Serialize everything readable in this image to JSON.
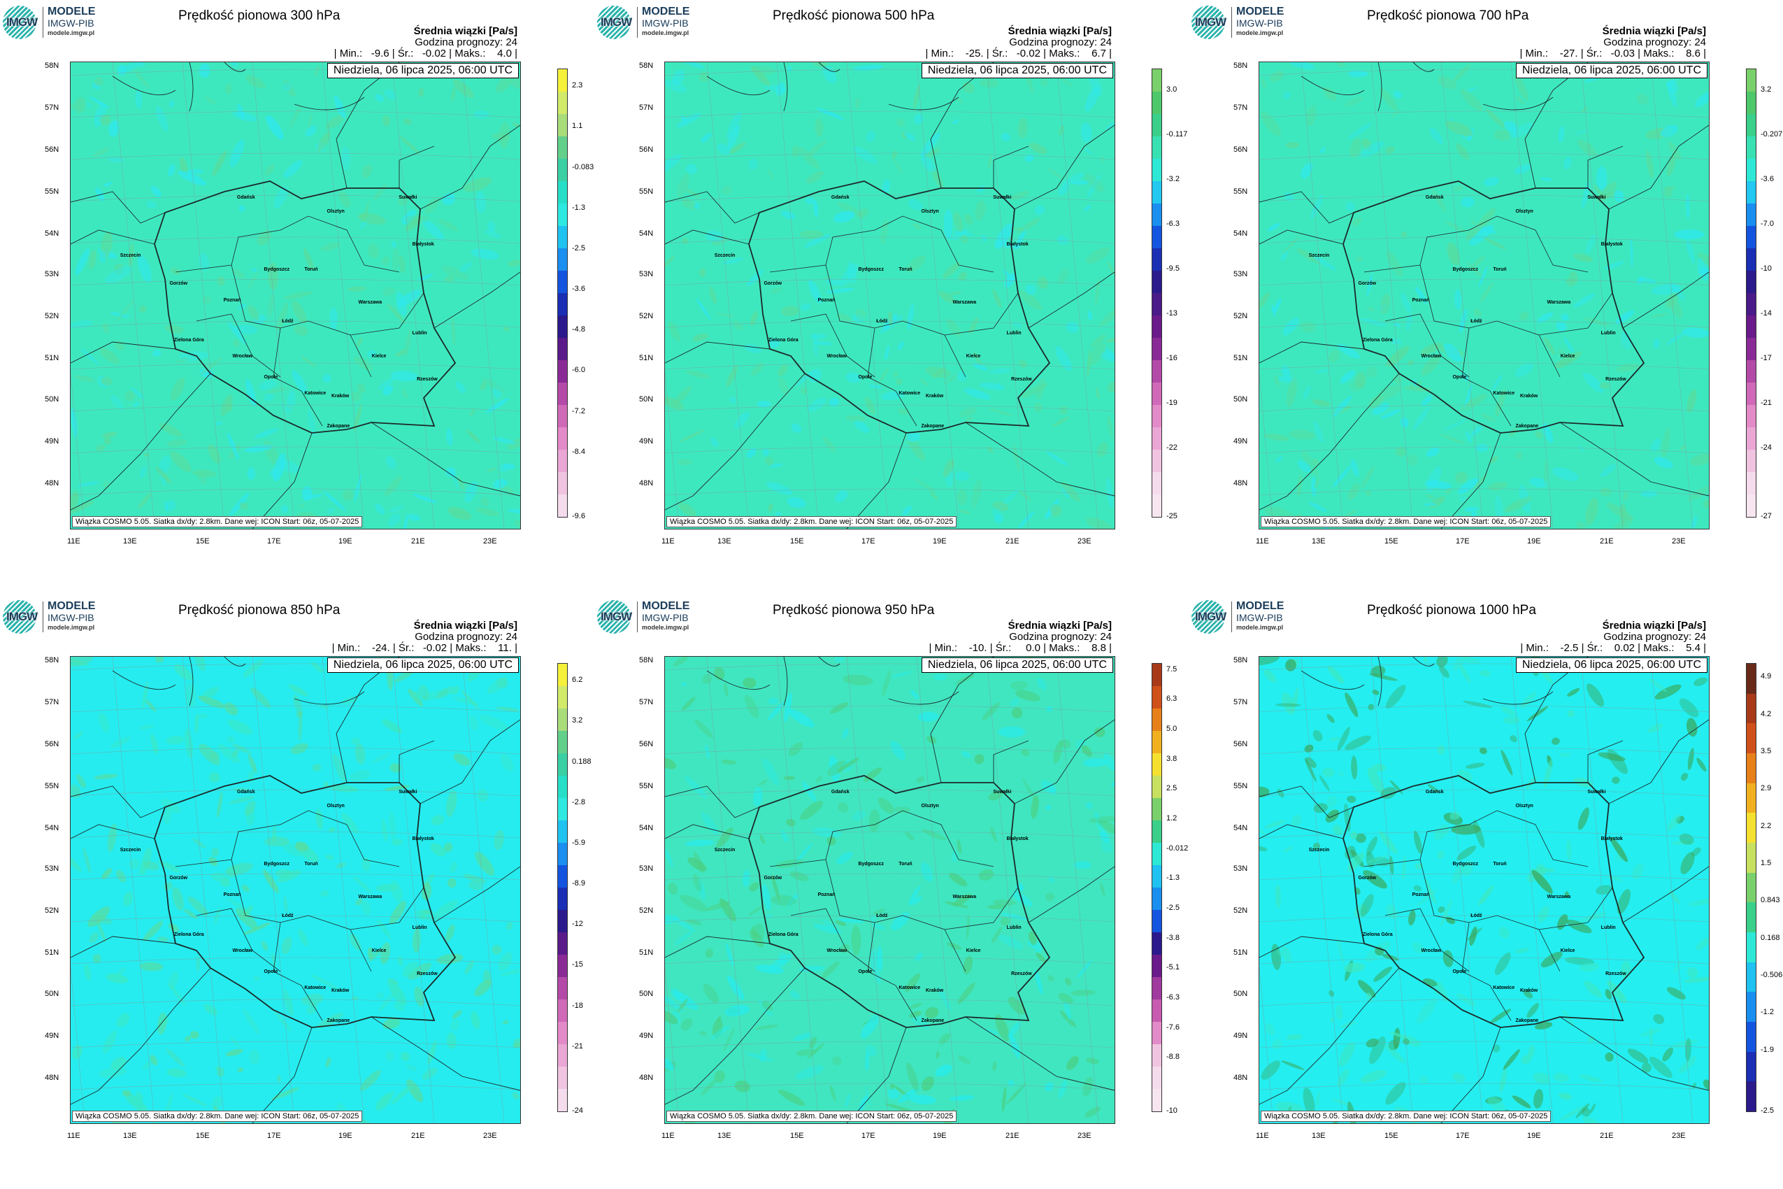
{
  "logo": {
    "title": "MODELE",
    "sub": "IMGW-PIB",
    "url": "modele.imgw.pl",
    "letters": "IMGW"
  },
  "common": {
    "stat_hdr": "Średnia wiązki [Pa/s]",
    "forecast_hdr": "Godzina prognozy: 24",
    "date": "Niedziela, 06 lipca 2025, 06:00 UTC",
    "footer": "Wiązka COSMO 5.05. Siatka dx/dy: 2.8km. Dane wej: ICON Start: 06z, 05-07-2025",
    "lat_labels": [
      "58N",
      "57N",
      "56N",
      "55N",
      "54N",
      "53N",
      "52N",
      "51N",
      "50N",
      "49N",
      "48N"
    ],
    "lon_labels": [
      "11E",
      "13E",
      "15E",
      "17E",
      "19E",
      "21E",
      "23E"
    ],
    "cities": [
      "Gdańsk",
      "Olsztyn",
      "Suwałki",
      "Szczecin",
      "Białystok",
      "Bydgoszcz",
      "Toruń",
      "Gorzów",
      "Poznań",
      "Warszawa",
      "Zielona Góra",
      "Łódź",
      "Lublin",
      "Wrocław",
      "Kielce",
      "Opole",
      "Rzeszów",
      "Katowice",
      "Kraków",
      "Zakopane"
    ]
  },
  "panels": [
    {
      "title": "Prędkość pionowa 300 hPa",
      "stats": "| Min.:   -9.6 | Śr.:   -0.02 | Maks.:    4.0 |",
      "cbar_labels": [
        "2.3",
        "1.1",
        "-0.083",
        "-1.3",
        "-2.5",
        "-3.6",
        "-4.8",
        "-6.0",
        "-7.2",
        "-8.4",
        "-9.6"
      ],
      "cbar_colors": [
        "#f5f03a",
        "#d2ea6a",
        "#a8dd7a",
        "#62d08a",
        "#3ad0a4",
        "#27dfc8",
        "#2ee8e2",
        "#1fc2f0",
        "#1a8ff0",
        "#1455e0",
        "#1a2fb4",
        "#2a1a8c",
        "#5a1a8a",
        "#8a2a96",
        "#b44aa8",
        "#d06ab8",
        "#e38ac8",
        "#eaa6d4",
        "#f0c4e0",
        "#f5dced"
      ]
    },
    {
      "title": "Prędkość pionowa 500 hPa",
      "stats": "| Min.:    -25. | Śr.:   -0.02 | Maks.:    6.7 |",
      "cbar_labels": [
        "3.0",
        "-0.117",
        "-3.2",
        "-6.3",
        "-9.5",
        "-13",
        "-16",
        "-19",
        "-22",
        "-25"
      ],
      "cbar_colors": [
        "#7ad06a",
        "#4ec86a",
        "#3ad08a",
        "#38e0b2",
        "#2ee8d6",
        "#22c8f0",
        "#1a8ff0",
        "#1455e0",
        "#1a2fb4",
        "#2a1a8c",
        "#4a1a88",
        "#6a1a8a",
        "#8a2a96",
        "#b44aa8",
        "#d06ab8",
        "#e38ac8",
        "#eaa6d4",
        "#f0c4e0",
        "#f5dced",
        "#f7e6f0"
      ]
    },
    {
      "title": "Prędkość pionowa 700 hPa",
      "stats": "| Min.:    -27. | Śr.:   -0.03 | Maks.:    8.6 |",
      "cbar_labels": [
        "3.2",
        "-0.207",
        "-3.6",
        "-7.0",
        "-10",
        "-14",
        "-17",
        "-21",
        "-24",
        "-27"
      ],
      "cbar_colors": [
        "#7ad06a",
        "#4ec86a",
        "#3ad08a",
        "#38e0b2",
        "#2ee8d6",
        "#22c8f0",
        "#1a8ff0",
        "#1455e0",
        "#1a2fb4",
        "#2a1a8c",
        "#4a1a88",
        "#6a1a8a",
        "#8a2a96",
        "#b44aa8",
        "#d06ab8",
        "#e38ac8",
        "#eaa6d4",
        "#f0c4e0",
        "#f5dced",
        "#f7e6f0"
      ]
    },
    {
      "title": "Prędkość pionowa 850 hPa",
      "stats": "| Min.:    -24. | Śr.:   -0.02 | Maks.:    11. |",
      "cbar_labels": [
        "6.2",
        "3.2",
        "0.188",
        "-2.8",
        "-5.9",
        "-8.9",
        "-12",
        "-15",
        "-18",
        "-21",
        "-24"
      ],
      "cbar_colors": [
        "#f5f03a",
        "#d2ea6a",
        "#a8dd7a",
        "#62d08a",
        "#3ad0a4",
        "#27dfc8",
        "#2ee8e2",
        "#1fc2f0",
        "#1a8ff0",
        "#1455e0",
        "#1a2fb4",
        "#2a1a8c",
        "#5a1a8a",
        "#8a2a96",
        "#b44aa8",
        "#d06ab8",
        "#e38ac8",
        "#eaa6d4",
        "#f0c4e0",
        "#f5dced"
      ]
    },
    {
      "title": "Prędkość pionowa 950 hPa",
      "stats": "| Min.:    -10. | Śr.:     0.0 | Maks.:    8.8 |",
      "cbar_labels": [
        "7.5",
        "6.3",
        "5.0",
        "3.8",
        "2.5",
        "1.2",
        "-0.012",
        "-1.3",
        "-2.5",
        "-3.8",
        "-5.1",
        "-6.3",
        "-7.6",
        "-8.8",
        "-10"
      ],
      "cbar_colors": [
        "#a83a1a",
        "#d0501a",
        "#e8801a",
        "#f0b020",
        "#f5e030",
        "#c8e060",
        "#7ad06a",
        "#3ad08a",
        "#2ee8d6",
        "#1fc2f0",
        "#1a8ff0",
        "#1455e0",
        "#2a1a8c",
        "#6a1a8a",
        "#a03a9e",
        "#c85ab0",
        "#e38ac8",
        "#f0c4e0",
        "#f5dced",
        "#f7e6f0"
      ]
    },
    {
      "title": "Prędkość pionowa 1000 hPa",
      "stats": "| Min.:    -2.5 | Śr.:    0.02 | Maks.:    5.4 |",
      "cbar_labels": [
        "4.9",
        "4.2",
        "3.5",
        "2.9",
        "2.2",
        "1.5",
        "0.843",
        "0.168",
        "-0.506",
        "-1.2",
        "-1.9",
        "-2.5"
      ],
      "cbar_colors": [
        "#6a2a1a",
        "#a83a1a",
        "#d0501a",
        "#e8801a",
        "#f0b020",
        "#f5e030",
        "#c8e060",
        "#7ad06a",
        "#3ad08a",
        "#2ee8d6",
        "#1fc2f0",
        "#1a8ff0",
        "#1455e0",
        "#1a2fb4",
        "#2a1a8c"
      ]
    }
  ]
}
